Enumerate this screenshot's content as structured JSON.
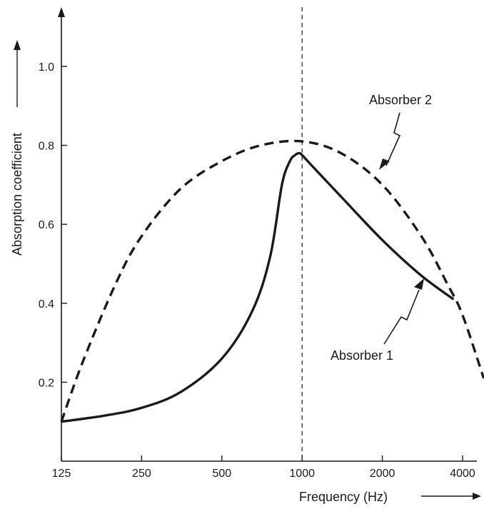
{
  "chart_data": {
    "type": "line",
    "xlabel": "Frequency (Hz)",
    "ylabel": "Absorption coefficient",
    "x_scale": "log2",
    "xlim": [
      125,
      4800
    ],
    "ylim": [
      0,
      1.15
    ],
    "x_ticks": [
      125,
      250,
      500,
      1000,
      2000,
      4000
    ],
    "x_tick_labels": [
      "125",
      "250",
      "500",
      "1000",
      "2000",
      "4000"
    ],
    "y_ticks": [
      0.2,
      0.4,
      0.6,
      0.8,
      1.0
    ],
    "y_tick_labels": [
      "0.2",
      "0.4",
      "0.6",
      "0.8",
      "1.0"
    ],
    "grid": false,
    "reference_line": {
      "x": 1000,
      "style": "dashed"
    },
    "colors": {
      "ink": "#1a1a1a"
    },
    "series": [
      {
        "name": "Absorber 1",
        "style": "solid",
        "x": [
          125,
          180,
          250,
          350,
          500,
          650,
          760,
          840,
          900,
          940,
          975,
          1000,
          1100,
          1400,
          2000,
          2800,
          3700
        ],
        "y": [
          0.1,
          0.115,
          0.135,
          0.175,
          0.26,
          0.38,
          0.52,
          0.7,
          0.76,
          0.775,
          0.78,
          0.775,
          0.745,
          0.67,
          0.56,
          0.47,
          0.41
        ]
      },
      {
        "name": "Absorber 2",
        "style": "dashed",
        "x": [
          125,
          150,
          200,
          250,
          350,
          500,
          700,
          1000,
          1400,
          2000,
          2800,
          3500,
          4000,
          4800
        ],
        "y": [
          0.1,
          0.25,
          0.45,
          0.57,
          0.69,
          0.76,
          0.8,
          0.81,
          0.78,
          0.7,
          0.57,
          0.45,
          0.37,
          0.21
        ]
      }
    ]
  }
}
